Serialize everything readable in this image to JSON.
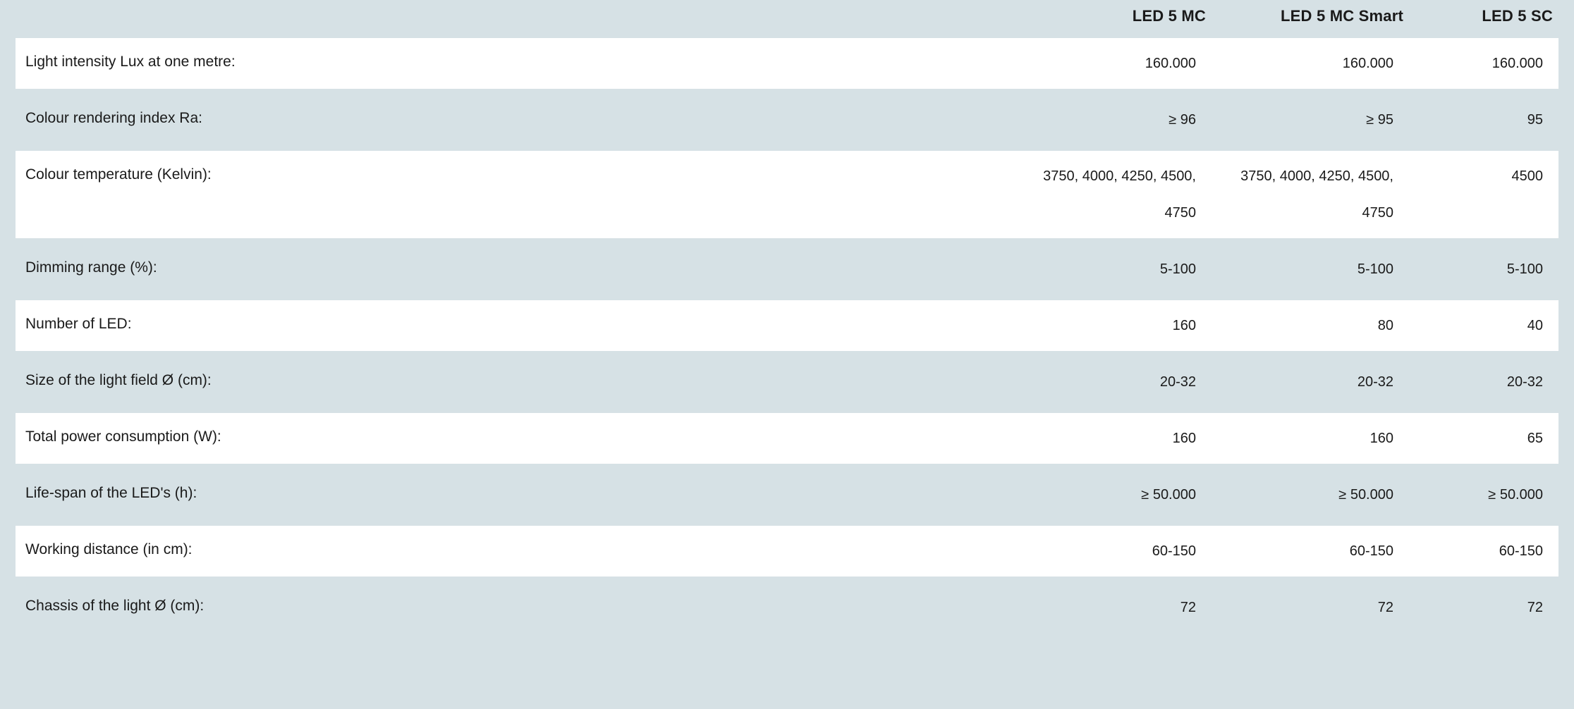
{
  "table": {
    "background_color": "#d6e1e5",
    "row_white_bg": "#ffffff",
    "text_color": "#1a1a1a",
    "header_fontsize": 22,
    "label_fontsize": 21,
    "value_fontsize": 20,
    "columns": [
      {
        "label": "LED 5 MC"
      },
      {
        "label": "LED 5 MC Smart"
      },
      {
        "label": "LED 5 SC"
      }
    ],
    "rows": [
      {
        "label": "Light intensity Lux at one metre:",
        "bg": "white",
        "values": [
          "160.000",
          "160.000",
          "160.000"
        ]
      },
      {
        "label": "Colour rendering index Ra:",
        "bg": "tint",
        "values": [
          "≥ 96",
          "≥ 95",
          "95"
        ]
      },
      {
        "label": "Colour temperature (Kelvin):",
        "bg": "white",
        "values": [
          "3750, 4000, 4250, 4500, 4750",
          "3750, 4000, 4250, 4500, 4750",
          "4500"
        ]
      },
      {
        "label": "Dimming range (%):",
        "bg": "tint",
        "values": [
          "5-100",
          "5-100",
          "5-100"
        ]
      },
      {
        "label": "Number of LED:",
        "bg": "white",
        "values": [
          "160",
          "80",
          "40"
        ]
      },
      {
        "label": "Size of the light field Ø (cm):",
        "bg": "tint",
        "values": [
          "20-32",
          "20-32",
          "20-32"
        ]
      },
      {
        "label": "Total power consumption (W):",
        "bg": "white",
        "values": [
          "160",
          "160",
          "65"
        ]
      },
      {
        "label": "Life-span of the LED's (h):",
        "bg": "tint",
        "values": [
          "≥ 50.000",
          "≥ 50.000",
          "≥ 50.000"
        ]
      },
      {
        "label": "Working distance (in cm):",
        "bg": "white",
        "values": [
          "60-150",
          "60-150",
          "60-150"
        ]
      },
      {
        "label": "Chassis of the light Ø (cm):",
        "bg": "tint",
        "values": [
          "72",
          "72",
          "72"
        ]
      }
    ]
  }
}
